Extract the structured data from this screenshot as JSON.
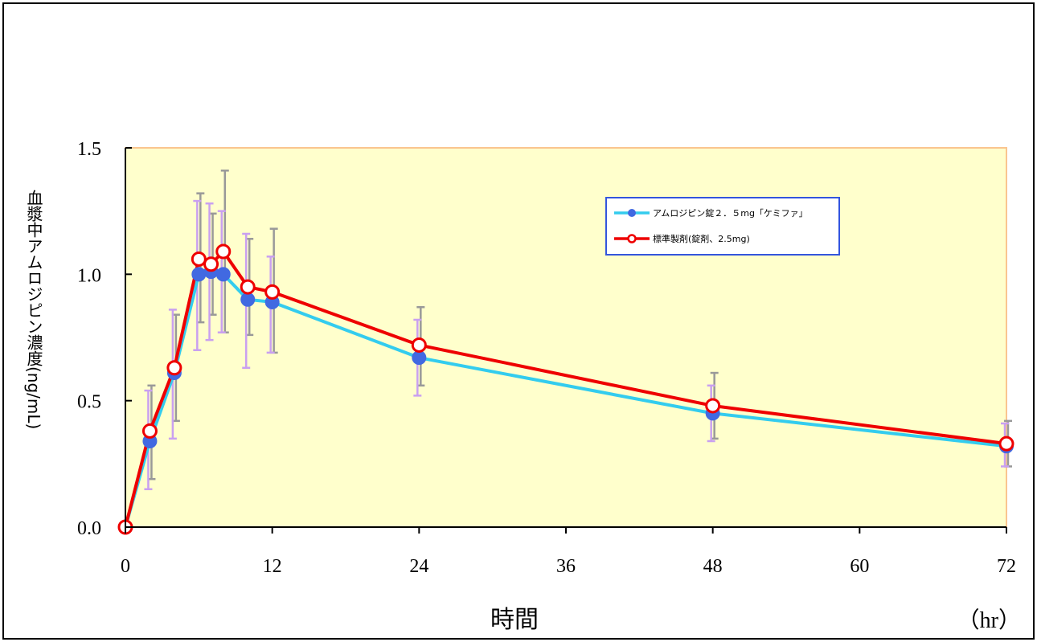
{
  "chart_data": {
    "type": "line",
    "xlabel": "時間",
    "x_unit": "（hr）",
    "ylabel": "血漿中アムロジピン濃度(ng/mL)",
    "xlim": [
      0,
      72
    ],
    "ylim": [
      0,
      1.5
    ],
    "x_ticks": [
      0,
      12,
      24,
      36,
      48,
      60,
      72
    ],
    "y_ticks": [
      "0.0",
      "0.5",
      "1.0",
      "1.5"
    ],
    "legend_position": "top-right",
    "plot_background": "#FFFFCC",
    "series": [
      {
        "name": "アムロジピン錠２．５mg「ケミファ」",
        "color": "#33CCEE",
        "marker_color": "#4169E1",
        "error_color": "#C9A0F0",
        "x": [
          0,
          2,
          4,
          6,
          7,
          8,
          10,
          12,
          24,
          48,
          72
        ],
        "y": [
          0,
          0.34,
          0.61,
          1.0,
          1.01,
          1.0,
          0.9,
          0.89,
          0.67,
          0.45,
          0.32
        ],
        "err_low": [
          0,
          0.19,
          0.26,
          0.3,
          0.27,
          0.23,
          0.27,
          0.2,
          0.15,
          0.11,
          0.08
        ],
        "err_high": [
          0,
          0.2,
          0.25,
          0.29,
          0.27,
          0.25,
          0.26,
          0.18,
          0.15,
          0.11,
          0.09
        ]
      },
      {
        "name": "標準製剤(錠剤、2.5mg)",
        "color": "#EE0000",
        "marker_color": "#FFFFFF",
        "error_color": "#999999",
        "x": [
          0,
          2,
          4,
          6,
          7,
          8,
          10,
          12,
          24,
          48,
          72
        ],
        "y": [
          0,
          0.38,
          0.63,
          1.06,
          1.04,
          1.09,
          0.95,
          0.93,
          0.72,
          0.48,
          0.33
        ],
        "err_low": [
          0,
          0.19,
          0.21,
          0.25,
          0.2,
          0.32,
          0.19,
          0.24,
          0.16,
          0.13,
          0.09
        ],
        "err_high": [
          0,
          0.18,
          0.21,
          0.26,
          0.2,
          0.32,
          0.19,
          0.25,
          0.15,
          0.13,
          0.09
        ]
      }
    ]
  }
}
